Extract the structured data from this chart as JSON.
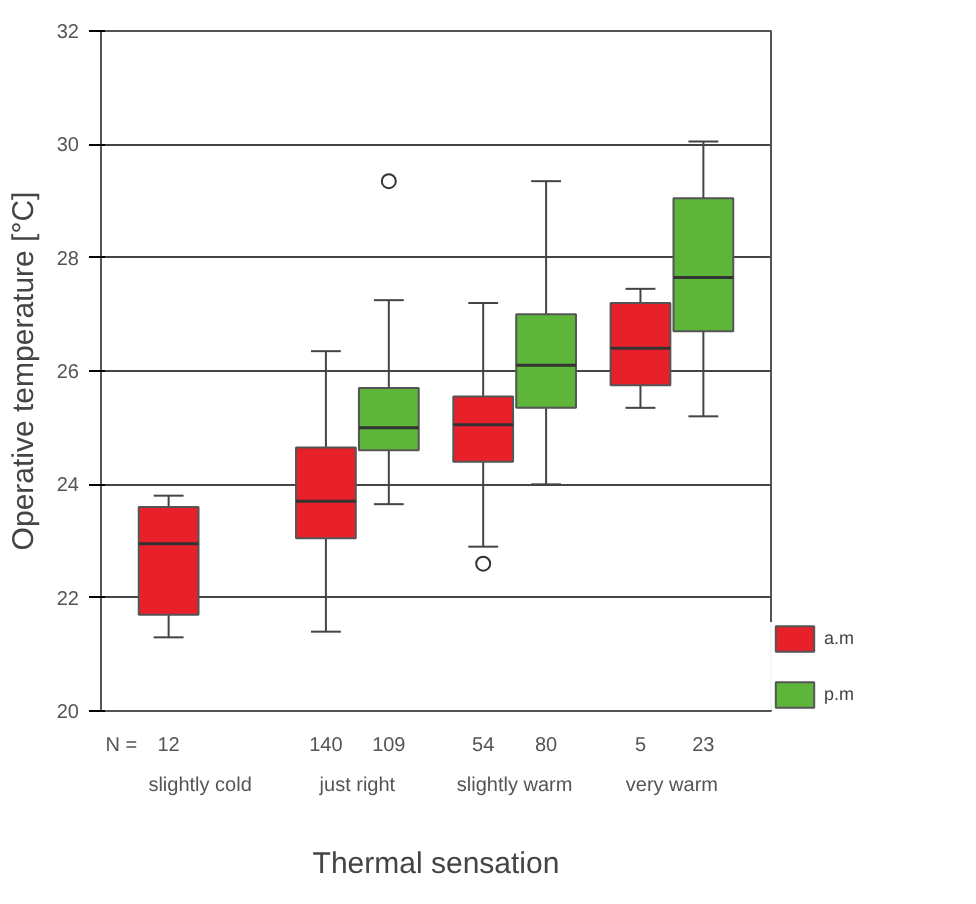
{
  "chart_data": {
    "type": "box",
    "xlabel": "Thermal sensation",
    "ylabel": "Operative temperature [°C]",
    "categories": [
      "slightly cold",
      "just right",
      "slightly warm",
      "very warm"
    ],
    "ylim": [
      20,
      32
    ],
    "yticks": [
      20,
      22,
      24,
      26,
      28,
      30,
      32
    ],
    "grid": "y",
    "legend": "bottom right",
    "annotations": [
      "N =",
      "12",
      "140",
      "109",
      "54",
      "80",
      "5",
      "23"
    ],
    "series": [
      {
        "name": "a.m",
        "color": "#e8202a",
        "boxes": [
          {
            "low": 21.3,
            "q1": 21.7,
            "median": 22.95,
            "q3": 23.6,
            "high": 23.8
          },
          {
            "low": 21.4,
            "q1": 23.05,
            "median": 23.7,
            "q3": 24.65,
            "high": 26.35
          },
          {
            "low": 22.9,
            "q1": 24.4,
            "median": 25.05,
            "q3": 25.55,
            "high": 27.2,
            "outliers": [
              22.6
            ]
          },
          {
            "low": 25.35,
            "q1": 25.75,
            "median": 26.4,
            "q3": 27.2,
            "high": 27.45
          }
        ]
      },
      {
        "name": "p.m",
        "color": "#5db53a",
        "boxes": [
          null,
          {
            "low": 23.65,
            "q1": 24.6,
            "median": 25.0,
            "q3": 25.7,
            "high": 27.25,
            "outliers": [
              29.35
            ]
          },
          {
            "low": 24.0,
            "q1": 25.35,
            "median": 26.1,
            "q3": 27.0,
            "high": 29.35
          },
          {
            "low": 25.2,
            "q1": 26.7,
            "median": 27.65,
            "q3": 29.05,
            "high": 30.05
          }
        ]
      }
    ]
  }
}
